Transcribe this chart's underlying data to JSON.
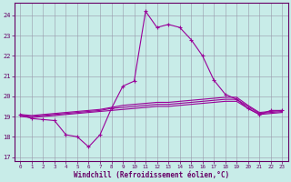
{
  "xlabel": "Windchill (Refroidissement éolien,°C)",
  "background_color": "#c8ece8",
  "grid_color": "#9999aa",
  "line_color": "#990099",
  "xlim": [
    -0.5,
    23.5
  ],
  "ylim": [
    16.8,
    24.6
  ],
  "yticks": [
    17,
    18,
    19,
    20,
    21,
    22,
    23,
    24
  ],
  "xticks": [
    0,
    1,
    2,
    3,
    4,
    5,
    6,
    7,
    8,
    9,
    10,
    11,
    12,
    13,
    14,
    15,
    16,
    17,
    18,
    19,
    20,
    21,
    22,
    23
  ],
  "series": [
    [
      19.1,
      18.9,
      18.85,
      18.8,
      18.1,
      18.0,
      17.5,
      18.1,
      19.4,
      20.5,
      20.75,
      24.2,
      23.4,
      23.55,
      23.4,
      22.8,
      22.0,
      20.8,
      20.1,
      19.85,
      19.4,
      19.1,
      19.3,
      19.3
    ],
    [
      19.1,
      19.05,
      19.1,
      19.15,
      19.2,
      19.25,
      19.3,
      19.35,
      19.45,
      19.55,
      19.6,
      19.65,
      19.7,
      19.7,
      19.75,
      19.8,
      19.85,
      19.9,
      19.95,
      19.95,
      19.55,
      19.2,
      19.25,
      19.3
    ],
    [
      19.05,
      19.0,
      19.05,
      19.1,
      19.15,
      19.2,
      19.25,
      19.3,
      19.4,
      19.45,
      19.5,
      19.55,
      19.6,
      19.6,
      19.65,
      19.7,
      19.75,
      19.8,
      19.85,
      19.85,
      19.5,
      19.15,
      19.2,
      19.25
    ],
    [
      19.0,
      18.95,
      19.0,
      19.05,
      19.1,
      19.15,
      19.2,
      19.25,
      19.3,
      19.35,
      19.4,
      19.45,
      19.5,
      19.5,
      19.55,
      19.6,
      19.65,
      19.7,
      19.75,
      19.75,
      19.4,
      19.1,
      19.15,
      19.2
    ]
  ]
}
